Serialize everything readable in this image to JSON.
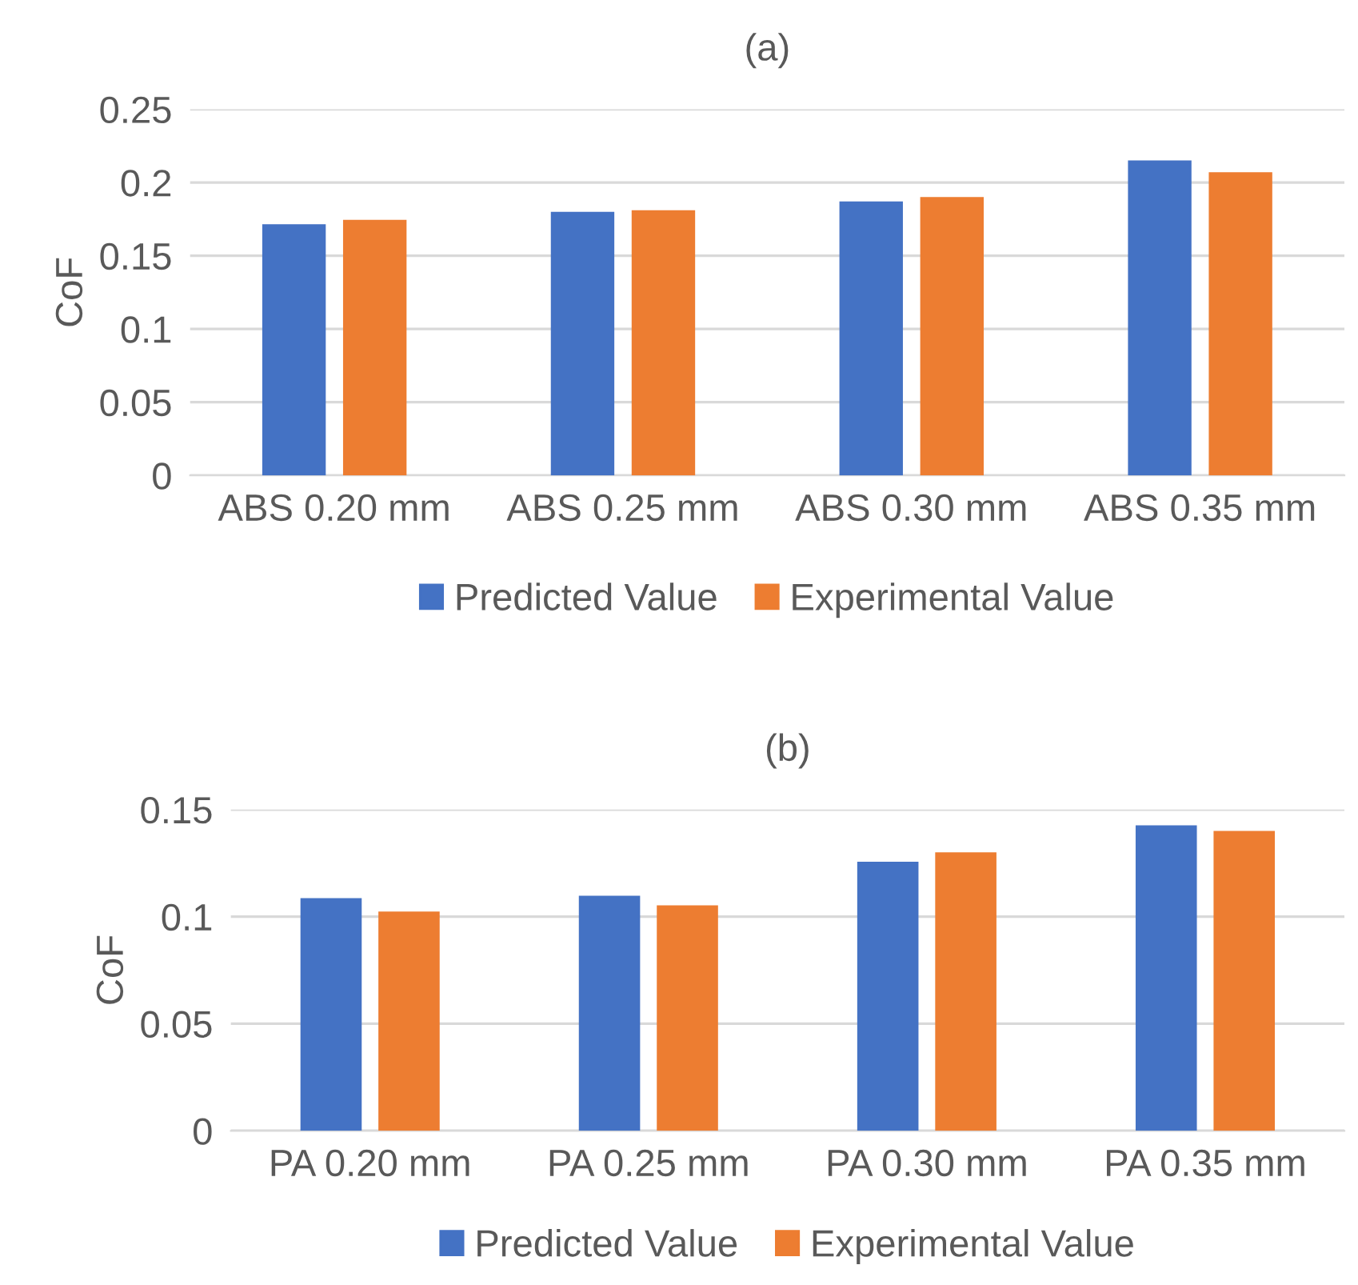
{
  "chart_data": [
    {
      "type": "bar",
      "title": "(a)",
      "ylabel": "CoF",
      "categories": [
        "ABS 0.20 mm",
        "ABS 0.25 mm",
        "ABS 0.30 mm",
        "ABS 0.35 mm"
      ],
      "series": [
        {
          "name": "Predicted Value",
          "color": "#4472c4",
          "values": [
            0.1715,
            0.18,
            0.187,
            0.215
          ]
        },
        {
          "name": "Experimental Value",
          "color": "#ed7d31",
          "values": [
            0.1745,
            0.181,
            0.19,
            0.207
          ]
        }
      ],
      "ylim": [
        0,
        0.25
      ],
      "yticks": [
        0,
        0.05,
        0.1,
        0.15,
        0.2,
        0.25
      ],
      "grid": "y",
      "legend": "bottom"
    },
    {
      "type": "bar",
      "title": "(b)",
      "ylabel": "CoF",
      "categories": [
        "PA 0.20 mm",
        "PA 0.25 mm",
        "PA 0.30 mm",
        "PA 0.35 mm"
      ],
      "series": [
        {
          "name": "Predicted Value",
          "color": "#4472c4",
          "values": [
            0.1086,
            0.1098,
            0.1256,
            0.1426
          ]
        },
        {
          "name": "Experimental Value",
          "color": "#ed7d31",
          "values": [
            0.1024,
            0.1053,
            0.13,
            0.14
          ]
        }
      ],
      "ylim": [
        0,
        0.15
      ],
      "yticks": [
        0,
        0.05,
        0.1,
        0.15
      ],
      "grid": "y",
      "legend": "bottom"
    }
  ]
}
